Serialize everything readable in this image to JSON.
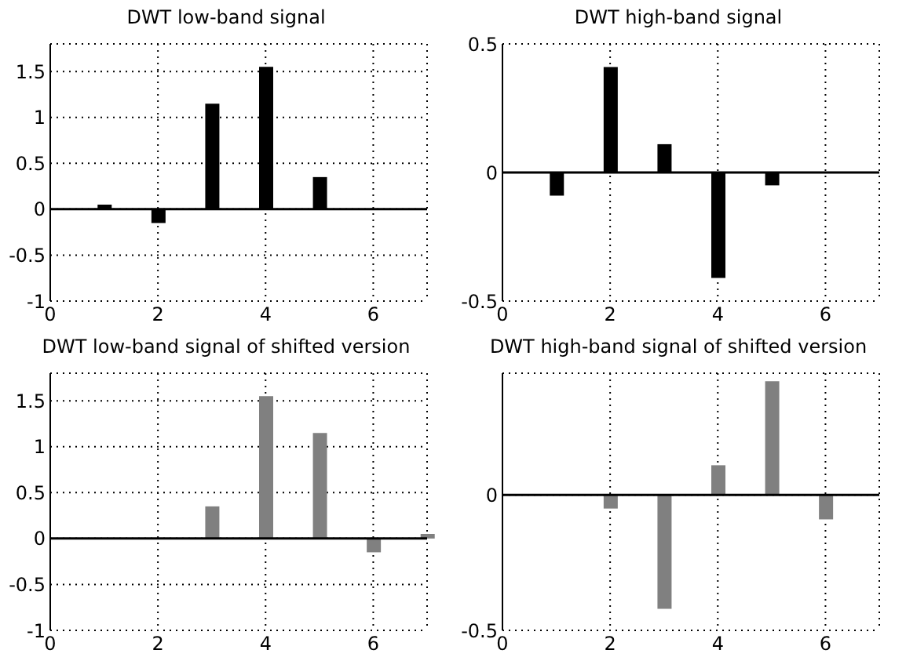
{
  "chart_data": [
    {
      "type": "bar",
      "title": "DWT low-band signal",
      "x": [
        0,
        1,
        2,
        3,
        4,
        5,
        6,
        7
      ],
      "values": [
        0,
        0.05,
        -0.15,
        1.15,
        1.55,
        0.35,
        0,
        0
      ],
      "color": "#000000",
      "xlim": [
        0,
        7
      ],
      "xticks": [
        0,
        2,
        4,
        6
      ],
      "ylim": [
        -1,
        1.8
      ],
      "yticks": [
        -1,
        -0.5,
        0,
        0.5,
        1,
        1.5
      ],
      "grid": true,
      "ref_lines": [
        {
          "axis": "y",
          "value": 0
        }
      ]
    },
    {
      "type": "bar",
      "title": "DWT high-band signal",
      "x": [
        0,
        1,
        2,
        3,
        4,
        5,
        6,
        7
      ],
      "values": [
        0,
        -0.09,
        0.41,
        0.11,
        -0.41,
        -0.05,
        0,
        0
      ],
      "color": "#000000",
      "xlim": [
        0,
        7
      ],
      "xticks": [
        0,
        2,
        4,
        6
      ],
      "ylim": [
        -0.5,
        0.5
      ],
      "yticks": [
        -0.5,
        0,
        0.5
      ],
      "grid": true,
      "ref_lines": [
        {
          "axis": "y",
          "value": 0
        }
      ]
    },
    {
      "type": "bar",
      "title": "DWT low-band signal of shifted version",
      "x": [
        0,
        1,
        2,
        3,
        4,
        5,
        6,
        7
      ],
      "values": [
        0,
        0,
        0,
        0.35,
        1.55,
        1.15,
        -0.15,
        0.05
      ],
      "color": "#808080",
      "xlim": [
        0,
        7
      ],
      "xticks": [
        0,
        2,
        4,
        6
      ],
      "ylim": [
        -1,
        1.8
      ],
      "yticks": [
        -1,
        -0.5,
        0,
        0.5,
        1,
        1.5
      ],
      "grid": true,
      "ref_lines": [
        {
          "axis": "y",
          "value": 0
        }
      ]
    },
    {
      "type": "bar",
      "title": "DWT high-band signal of shifted version",
      "x": [
        0,
        1,
        2,
        3,
        4,
        5,
        6,
        7
      ],
      "values": [
        0,
        0,
        -0.05,
        -0.42,
        0.11,
        0.42,
        -0.09,
        0
      ],
      "color": "#808080",
      "xlim": [
        0,
        7
      ],
      "xticks": [
        0,
        2,
        4,
        6
      ],
      "ylim": [
        -0.5,
        0.45
      ],
      "yticks": [
        -0.5,
        0
      ],
      "grid": true,
      "ref_lines": [
        {
          "axis": "y",
          "value": 0
        }
      ]
    }
  ]
}
